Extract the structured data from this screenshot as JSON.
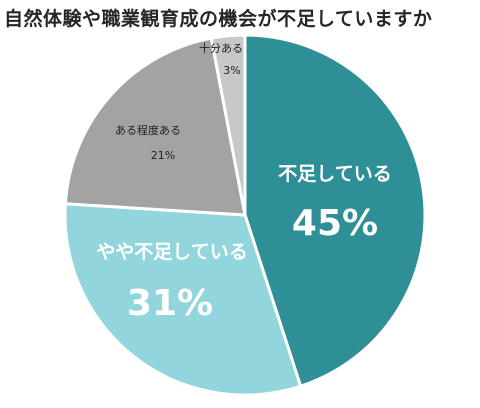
{
  "chart_data": {
    "type": "pie",
    "title": "自然体験や職業観育成の機会が不足していますか",
    "slices": [
      {
        "label": "不足している",
        "value": 45,
        "value_label": "45%",
        "color": "#2E8F96"
      },
      {
        "label": "やや不足している",
        "value": 31,
        "value_label": "31%",
        "color": "#92D5DD"
      },
      {
        "label": "ある程度ある",
        "value": 21,
        "value_label": "21%",
        "color": "#A3A3A3"
      },
      {
        "label": "十分ある",
        "value": 3,
        "value_label": "3%",
        "color": "#C8C8C8"
      }
    ],
    "start": "12 o'clock",
    "direction": "clockwise",
    "legend": "none"
  }
}
